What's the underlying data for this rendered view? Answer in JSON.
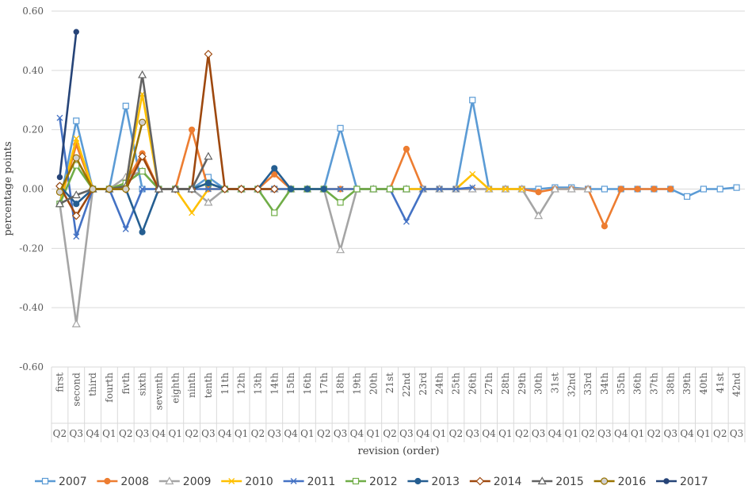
{
  "chart_data": {
    "type": "line",
    "title": "",
    "ylabel": "percentage points",
    "xlabel": "revision (order)",
    "ylim": [
      -0.6,
      0.6
    ],
    "yticks": [
      "0.60",
      "0.40",
      "0.20",
      "0.00",
      "-0.20",
      "-0.40",
      "-0.60"
    ],
    "ytick_values": [
      0.6,
      0.4,
      0.2,
      0.0,
      -0.2,
      -0.4,
      -0.6
    ],
    "grid": "horizontal",
    "legend": "bottom",
    "revision_labels": [
      "first",
      "second",
      "third",
      "fourth",
      "fivth",
      "sixth",
      "seventh",
      "eighth",
      "ninth",
      "tenth",
      "11th",
      "12th",
      "13th",
      "14th",
      "15th",
      "16th",
      "17th",
      "18th",
      "19th",
      "20th",
      "21st",
      "22nd",
      "23rd",
      "24th",
      "25th",
      "26th",
      "27th",
      "28th",
      "29th",
      "30th",
      "31st",
      "32nd",
      "33rd",
      "34th",
      "35th",
      "36th",
      "37th",
      "38th",
      "39th",
      "40th",
      "41st",
      "42nd"
    ],
    "quarter_labels": [
      "Q2",
      "Q3",
      "Q4",
      "Q1",
      "Q2",
      "Q3",
      "Q4",
      "Q1",
      "Q2",
      "Q3",
      "Q4",
      "Q1",
      "Q2",
      "Q3",
      "Q4",
      "Q1",
      "Q2",
      "Q3",
      "Q4",
      "Q1",
      "Q2",
      "Q3",
      "Q4",
      "Q1",
      "Q2",
      "Q3",
      "Q4",
      "Q1",
      "Q2",
      "Q3",
      "Q4",
      "Q1",
      "Q2",
      "Q3",
      "Q4",
      "Q1",
      "Q2",
      "Q3",
      "Q4",
      "Q1",
      "Q2",
      "Q3"
    ],
    "series": [
      {
        "name": "2007",
        "color": "#5B9BD5",
        "marker": "square",
        "values": [
          -0.05,
          0.23,
          0,
          0,
          0.28,
          0,
          0,
          0,
          0,
          0.04,
          0,
          0,
          0,
          0,
          0,
          0,
          0,
          0.205,
          0,
          0,
          0,
          0,
          0,
          0,
          0,
          0.3,
          0,
          0,
          0,
          0,
          0.005,
          0.005,
          0,
          0,
          0,
          0,
          0,
          0,
          -0.025,
          0,
          0,
          0.005
        ]
      },
      {
        "name": "2008",
        "color": "#ED7D31",
        "marker": "circle",
        "values": [
          -0.05,
          0.15,
          0,
          0,
          0.02,
          0.12,
          0,
          0,
          0.2,
          0,
          0,
          0,
          0,
          0.05,
          0,
          0,
          0,
          0,
          0,
          0,
          0,
          0.135,
          0,
          0,
          0,
          0,
          0,
          0,
          0,
          -0.01,
          0,
          0,
          0,
          -0.125,
          0,
          0,
          0,
          0
        ]
      },
      {
        "name": "2009",
        "color": "#A5A5A5",
        "marker": "triangle",
        "values": [
          -0.05,
          -0.455,
          0,
          0,
          0.04,
          0.06,
          0,
          0,
          0,
          -0.045,
          0,
          0,
          0,
          0,
          0,
          0,
          0,
          -0.205,
          0,
          0,
          0,
          0,
          0,
          0,
          0,
          0,
          0,
          0,
          0,
          -0.09,
          0,
          0,
          0
        ]
      },
      {
        "name": "2010",
        "color": "#FFC000",
        "marker": "x",
        "values": [
          -0.05,
          0.17,
          0,
          0,
          0.02,
          0.32,
          0,
          0,
          -0.08,
          0,
          0,
          0,
          0,
          0,
          0,
          0,
          0,
          0,
          0,
          0,
          0,
          0,
          0,
          0,
          0,
          0.05,
          0,
          0,
          0
        ]
      },
      {
        "name": "2011",
        "color": "#4472C4",
        "marker": "x",
        "values": [
          0.24,
          -0.16,
          0,
          0,
          -0.135,
          0,
          0,
          0,
          0,
          0,
          0,
          0,
          0,
          0,
          0,
          0,
          0,
          0,
          0,
          0,
          0,
          -0.11,
          0,
          0,
          0,
          0.005
        ]
      },
      {
        "name": "2012",
        "color": "#70AD47",
        "marker": "square",
        "values": [
          -0.05,
          0.08,
          0,
          0,
          0.02,
          0.06,
          0,
          0,
          0,
          0.02,
          0,
          0,
          0,
          -0.08,
          0,
          0,
          0,
          -0.045,
          0,
          0,
          0,
          0
        ]
      },
      {
        "name": "2013",
        "color": "#255E91",
        "marker": "circle",
        "values": [
          0.01,
          -0.05,
          0,
          0,
          0,
          -0.145,
          0,
          0,
          0,
          0.02,
          0,
          0,
          0,
          0.07,
          0,
          0,
          0
        ]
      },
      {
        "name": "2014",
        "color": "#9E480E",
        "marker": "diamond",
        "values": [
          0.01,
          -0.09,
          0,
          0,
          0,
          0.11,
          0,
          0,
          0,
          0.455,
          0,
          0,
          0,
          0
        ]
      },
      {
        "name": "2015",
        "color": "#636363",
        "marker": "triangle",
        "values": [
          -0.05,
          -0.02,
          0,
          0,
          0.01,
          0.385,
          0,
          0,
          0,
          0.11
        ]
      },
      {
        "name": "2016",
        "color": "#997300",
        "marker": "circle-gray",
        "values": [
          -0.01,
          0.105,
          0,
          0,
          0,
          0.225
        ]
      },
      {
        "name": "2017",
        "color": "#264478",
        "marker": "dot",
        "values": [
          0.04,
          0.53
        ]
      }
    ]
  }
}
